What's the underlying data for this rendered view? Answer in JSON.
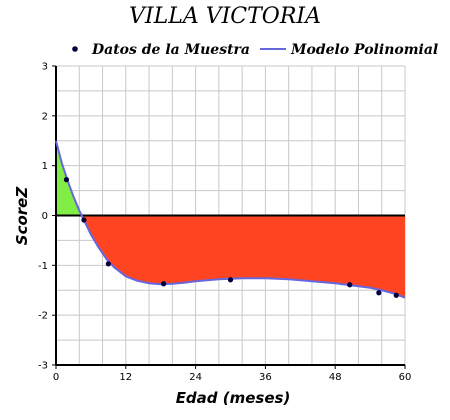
{
  "chart_data": {
    "type": "line",
    "title": "VILLA VICTORIA",
    "xlabel": "Edad (meses)",
    "ylabel": "ScoreZ",
    "xlim": [
      0,
      60
    ],
    "ylim": [
      -3,
      3
    ],
    "xticks": [
      0,
      12,
      24,
      36,
      48,
      60
    ],
    "yticks": [
      -3,
      -2,
      -1,
      0,
      1,
      2,
      3
    ],
    "grid": true,
    "legend": "top",
    "series": [
      {
        "name": "Datos de la Muestra",
        "kind": "scatter",
        "color": "#000040",
        "x": [
          1.8,
          4.8,
          9,
          18.5,
          30,
          50.5,
          55.5,
          58.5
        ],
        "y": [
          0.72,
          -0.09,
          -0.97,
          -1.37,
          -1.29,
          -1.39,
          -1.55,
          -1.6
        ]
      },
      {
        "name": "Modelo Polinomial",
        "kind": "line",
        "color": "#6666dd",
        "x": [
          0,
          1,
          2,
          3,
          4,
          5,
          6,
          7,
          8,
          9,
          10,
          12,
          14,
          16,
          18,
          20,
          22,
          24,
          26,
          28,
          30,
          32,
          34,
          36,
          38,
          40,
          42,
          44,
          46,
          48,
          50,
          52,
          54,
          56,
          58,
          60
        ],
        "y": [
          1.5,
          1.05,
          0.7,
          0.38,
          0.1,
          -0.14,
          -0.38,
          -0.58,
          -0.76,
          -0.92,
          -1.04,
          -1.22,
          -1.31,
          -1.36,
          -1.38,
          -1.37,
          -1.35,
          -1.32,
          -1.3,
          -1.28,
          -1.27,
          -1.26,
          -1.26,
          -1.26,
          -1.27,
          -1.28,
          -1.3,
          -1.32,
          -1.34,
          -1.36,
          -1.39,
          -1.42,
          -1.45,
          -1.5,
          -1.56,
          -1.65
        ]
      }
    ],
    "fill": {
      "positive_color": "#80ee44",
      "negative_color": "#ff4422"
    }
  }
}
